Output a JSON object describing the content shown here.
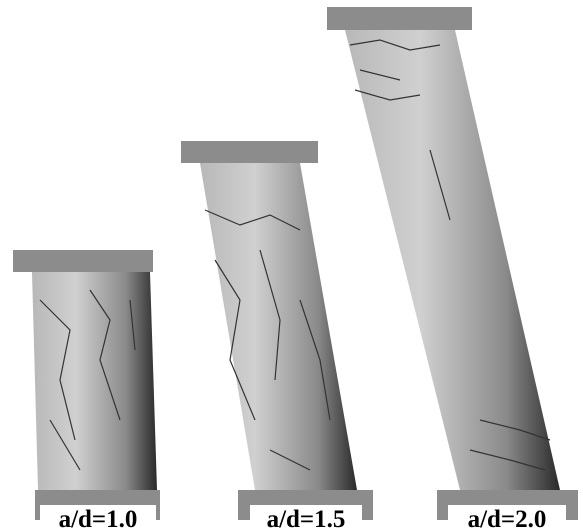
{
  "columns": [
    {
      "label": "a/d=1.0"
    },
    {
      "label": "a/d=1.5"
    },
    {
      "label": "a/d=2.0"
    }
  ]
}
